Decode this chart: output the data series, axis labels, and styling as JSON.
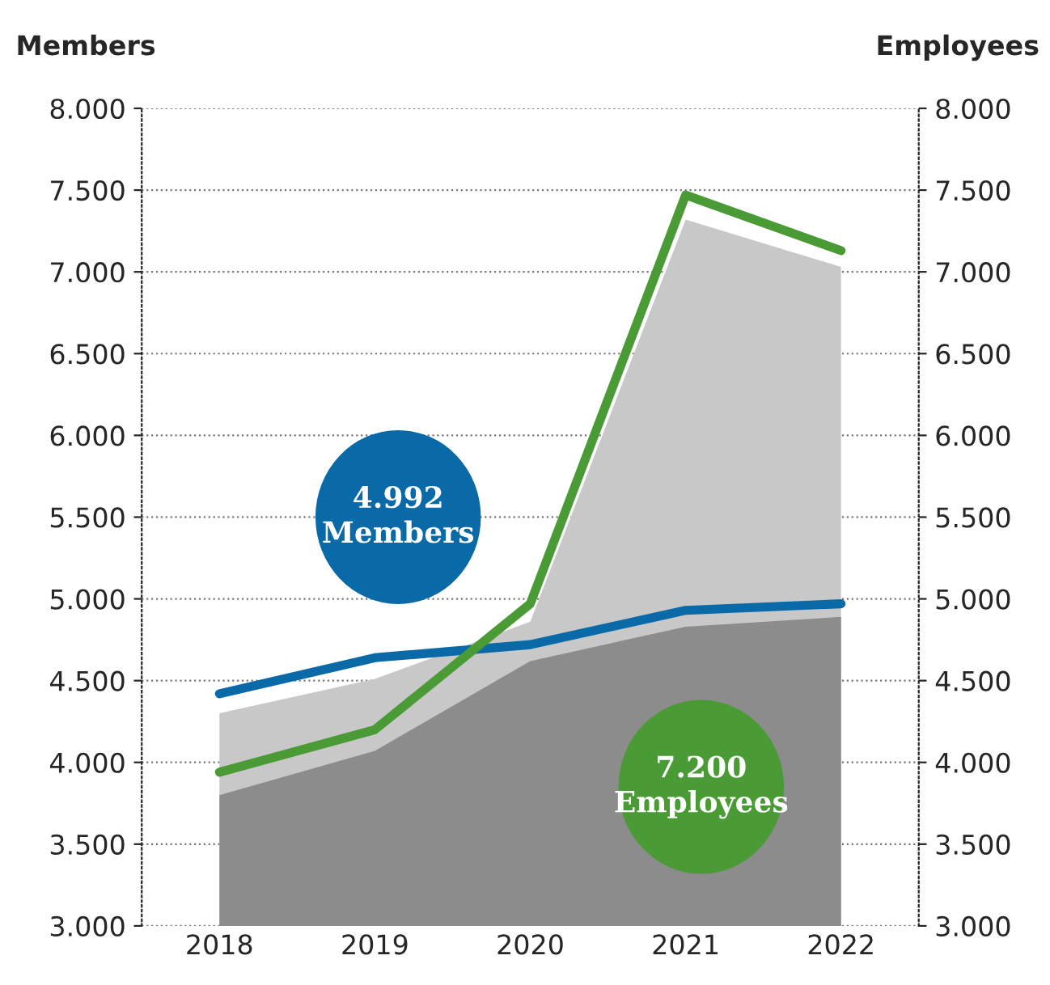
{
  "chart_data": {
    "type": "line",
    "ylabel": "Members",
    "y2label": "Employees",
    "categories": [
      "2018",
      "2019",
      "2020",
      "2021",
      "2022"
    ],
    "series": [
      {
        "type": "area",
        "color": "#c8c8c8",
        "values": [
          4300,
          4510,
          4860,
          7320,
          7030
        ]
      },
      {
        "type": "area",
        "color": "#8c8c8c",
        "values": [
          3800,
          4070,
          4620,
          4830,
          4890
        ]
      },
      {
        "color": "#0a6aa8",
        "values": [
          4420,
          4640,
          4720,
          4930,
          4970
        ]
      },
      {
        "color": "#4a9a35",
        "axis": "y2",
        "values": [
          3940,
          4200,
          4970,
          7470,
          7130
        ]
      }
    ],
    "ylim": [
      3000,
      8000
    ],
    "y2lim": [
      3000,
      8000
    ],
    "yticks": [
      {
        "value": 3000,
        "label": "3.000"
      },
      {
        "value": 3500,
        "label": "3.500"
      },
      {
        "value": 4000,
        "label": "4.000"
      },
      {
        "value": 4500,
        "label": "4.500"
      },
      {
        "value": 5000,
        "label": "5.000"
      },
      {
        "value": 5500,
        "label": "5.500"
      },
      {
        "value": 6000,
        "label": "6.000"
      },
      {
        "value": 6500,
        "label": "6.500"
      },
      {
        "value": 7000,
        "label": "7.000"
      },
      {
        "value": 7500,
        "label": "7.500"
      },
      {
        "value": 8000,
        "label": "8.000"
      }
    ],
    "y2ticks": [
      {
        "value": 3000,
        "label": "3.000"
      },
      {
        "value": 3500,
        "label": "3.500"
      },
      {
        "value": 4000,
        "label": "4.000"
      },
      {
        "value": 4500,
        "label": "4.500"
      },
      {
        "value": 5000,
        "label": "5.000"
      },
      {
        "value": 5500,
        "label": "5.500"
      },
      {
        "value": 6000,
        "label": "6.000"
      },
      {
        "value": 6500,
        "label": "6.500"
      },
      {
        "value": 7000,
        "label": "7.000"
      },
      {
        "value": 7500,
        "label": "7.500"
      },
      {
        "value": 8000,
        "label": "8.000"
      }
    ],
    "annotations": [
      "4.992\nMembers",
      "7.200\nEmployees"
    ],
    "grid": "y",
    "line_style": "solid",
    "marker": "none"
  }
}
